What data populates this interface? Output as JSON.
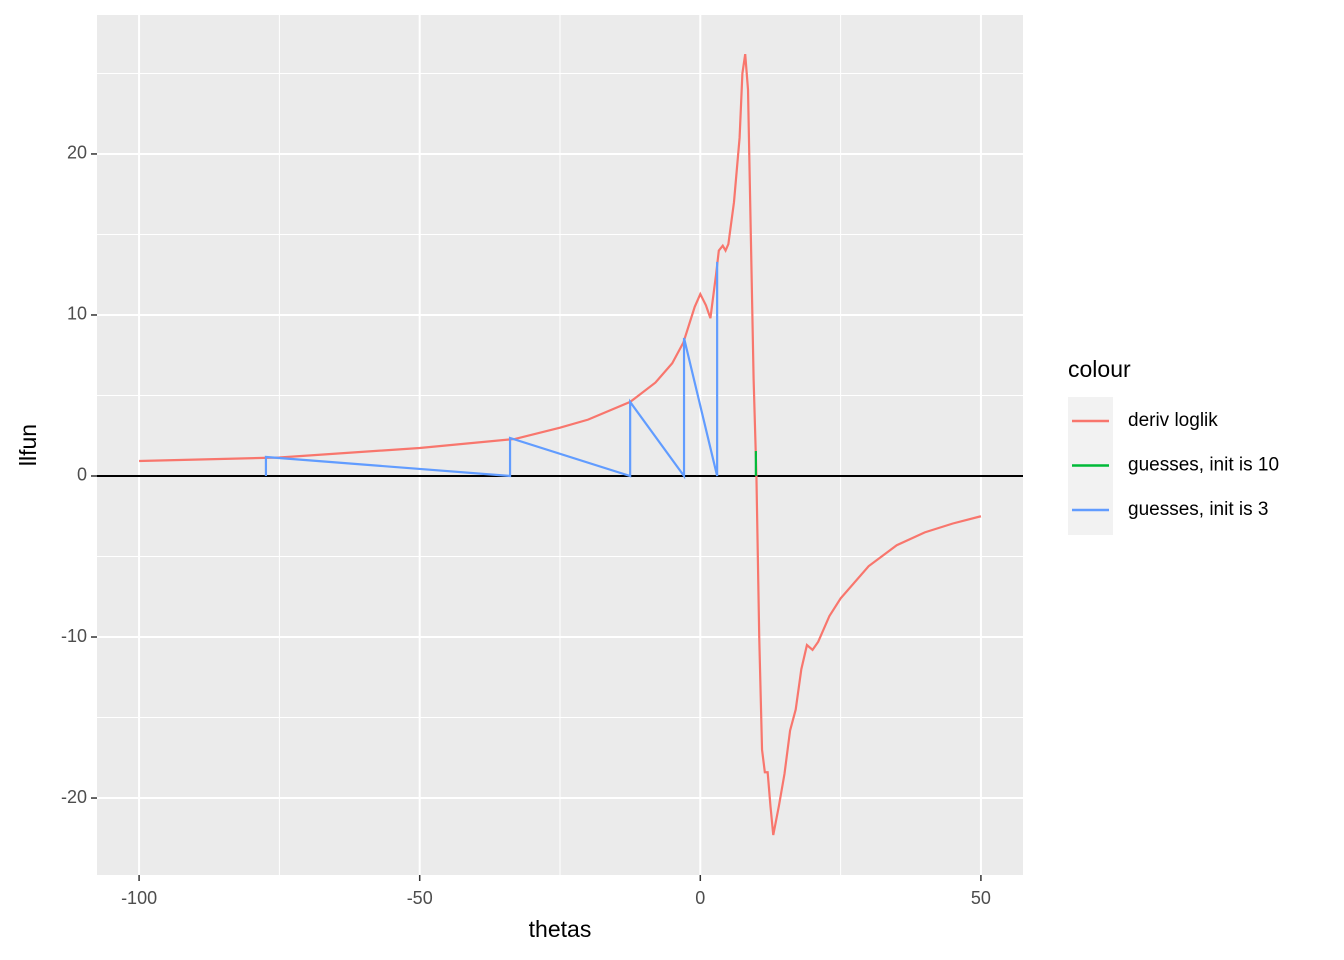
{
  "chart_data": {
    "type": "line",
    "x_label": "thetas",
    "y_label": "llfun",
    "legend_title": "colour",
    "legend": "right",
    "grid": true,
    "xlim": [
      -107.5,
      57.5
    ],
    "ylim": [
      -24.78,
      28.63
    ],
    "xticks": [
      -100,
      -50,
      0,
      50
    ],
    "yticks": [
      -20,
      -10,
      0,
      10,
      20
    ],
    "xminor_ticks": [
      -75,
      -25,
      25
    ],
    "yminor_ticks": [
      -25,
      -15,
      -5,
      5,
      15,
      25
    ],
    "hline": 0,
    "series": [
      {
        "name": "deriv loglik",
        "color": "#f8766d",
        "x": [
          -100,
          -75,
          -50,
          -33,
          -25,
          -20,
          -12.5,
          -8,
          -5,
          -3,
          -1,
          0,
          1,
          1.8,
          2.8,
          3.3,
          4,
          4.5,
          5,
          6,
          7,
          7.5,
          8,
          8.5,
          9,
          9.5,
          10,
          10.5,
          11,
          11.5,
          12,
          12.5,
          13,
          14,
          15,
          16,
          17,
          18,
          19,
          20,
          21,
          23,
          25,
          30,
          35,
          40,
          45,
          50
        ],
        "values": [
          0.93,
          1.15,
          1.74,
          2.3,
          3.0,
          3.5,
          4.6,
          5.8,
          7.0,
          8.3,
          10.5,
          11.3,
          10.6,
          9.8,
          12.5,
          14.0,
          14.3,
          14.0,
          14.4,
          17,
          21,
          25,
          26.2,
          24,
          15,
          6,
          0,
          -10,
          -17,
          -18.4,
          -18.4,
          -20.5,
          -22.3,
          -20.5,
          -18.5,
          -15.8,
          -14.5,
          -12,
          -10.5,
          -10.8,
          -10.3,
          -8.7,
          -7.6,
          -5.6,
          -4.3,
          -3.5,
          -2.95,
          -2.5
        ]
      },
      {
        "name": "guesses, init is 10",
        "color": "#00ba38",
        "x": [
          9.9,
          9.9
        ],
        "values": [
          1.55,
          0
        ]
      },
      {
        "name": "guesses, init is 3",
        "color": "#619cff",
        "x": [
          3,
          3,
          -2.9,
          -2.9,
          -12.5,
          -12.5,
          -33.9,
          -33.9,
          -77.4,
          -77.4
        ],
        "values": [
          13.3,
          0,
          8.57,
          0,
          4.6,
          0,
          2.36,
          0,
          1.18,
          0
        ]
      }
    ]
  }
}
